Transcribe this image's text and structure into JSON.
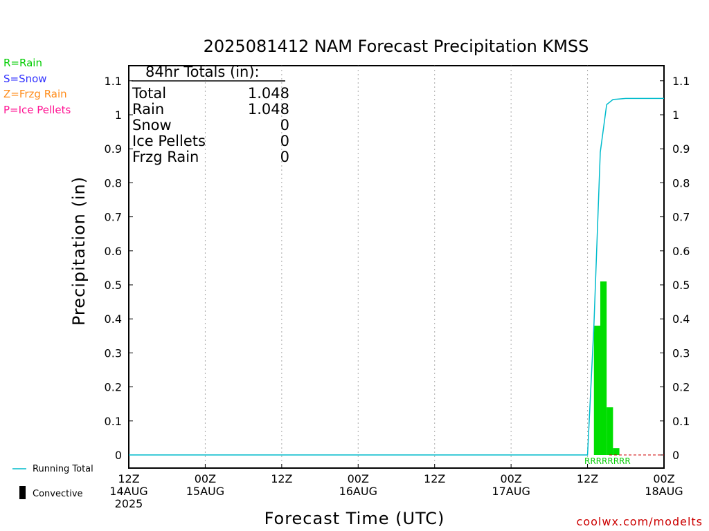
{
  "legend_ptypes": [
    {
      "label": "R=Rain",
      "color": "#00cc00"
    },
    {
      "label": "S=Snow",
      "color": "#3333ff"
    },
    {
      "label": "Z=Frzg Rain",
      "color": "#ff8c1a"
    },
    {
      "label": "P=Ice Pellets",
      "color": "#ff1493"
    }
  ],
  "totals": {
    "header": "84hr Totals (in):",
    "rows": [
      {
        "label": "Total",
        "value": "1.048"
      },
      {
        "label": "Rain",
        "value": "1.048"
      },
      {
        "label": "Snow",
        "value": "0"
      },
      {
        "label": "Ice Pellets",
        "value": "0"
      },
      {
        "label": "Frzg Rain",
        "value": "0"
      }
    ]
  },
  "bottom_legend": {
    "running_total": "Running Total",
    "convective": "Convective"
  },
  "watermark": "coolwx.com/modelts",
  "ptype_string": "RRRRRRRR",
  "chart_data": {
    "type": "bar",
    "title": "2025081412 NAM Forecast Precipitation KMSS",
    "xlabel": "Forecast Time (UTC)",
    "ylabel": "Precipitation (in)",
    "ylim": [
      0,
      1.15
    ],
    "xlim_hours": [
      0,
      84
    ],
    "y_ticks": [
      "0",
      "0.1",
      "0.2",
      "0.3",
      "0.4",
      "0.5",
      "0.6",
      "0.7",
      "0.8",
      "0.9",
      "1",
      "1.1"
    ],
    "x_ticks": [
      {
        "hour": 0,
        "line1": "12Z",
        "line2": "14AUG",
        "line3": "2025"
      },
      {
        "hour": 12,
        "line1": "00Z",
        "line2": "15AUG",
        "line3": ""
      },
      {
        "hour": 24,
        "line1": "12Z",
        "line2": "",
        "line3": ""
      },
      {
        "hour": 36,
        "line1": "00Z",
        "line2": "16AUG",
        "line3": ""
      },
      {
        "hour": 48,
        "line1": "12Z",
        "line2": "",
        "line3": ""
      },
      {
        "hour": 60,
        "line1": "00Z",
        "line2": "17AUG",
        "line3": ""
      },
      {
        "hour": 72,
        "line1": "12Z",
        "line2": "",
        "line3": ""
      },
      {
        "hour": 84,
        "line1": "00Z",
        "line2": "18AUG",
        "line3": ""
      }
    ],
    "grid": "vertical dotted",
    "series": [
      {
        "kind": "bar",
        "color": "#00dd00",
        "points": [
          {
            "x": 73,
            "y": 0.38
          },
          {
            "x": 74,
            "y": 0.51
          },
          {
            "x": 75,
            "y": 0.14
          },
          {
            "x": 76,
            "y": 0.02
          }
        ]
      },
      {
        "name": "Running Total",
        "kind": "line",
        "color": "#00bbcc",
        "points": [
          {
            "x": 0,
            "y": 0
          },
          {
            "x": 72,
            "y": 0
          },
          {
            "x": 73,
            "y": 0.38
          },
          {
            "x": 74,
            "y": 0.89
          },
          {
            "x": 75,
            "y": 1.03
          },
          {
            "x": 76,
            "y": 1.045
          },
          {
            "x": 78,
            "y": 1.048
          },
          {
            "x": 84,
            "y": 1.048
          }
        ]
      }
    ]
  }
}
